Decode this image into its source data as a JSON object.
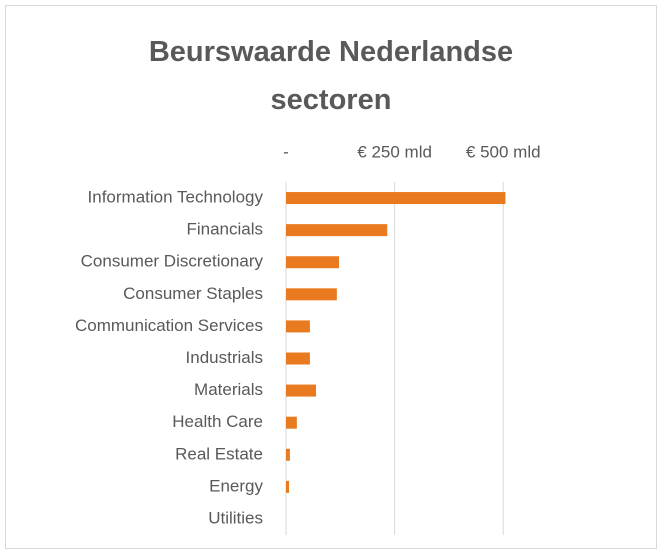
{
  "chart_data": {
    "type": "bar",
    "orientation": "horizontal",
    "title": "Beurswaarde Nederlandse sectoren",
    "categories": [
      "Information Technology",
      "Financials",
      "Consumer Discretionary",
      "Consumer Staples",
      "Communication Services",
      "Industrials",
      "Materials",
      "Health Care",
      "Real Estate",
      "Energy",
      "Utilities"
    ],
    "values": [
      505,
      233,
      122,
      117,
      55,
      55,
      69,
      25,
      9,
      7,
      0
    ],
    "color": "#e97a1f",
    "xlim": [
      0,
      550
    ],
    "xticks": [
      {
        "value": 0,
        "label": "-"
      },
      {
        "value": 250,
        "label": "€ 250 mld"
      },
      {
        "value": 500,
        "label": "€ 500 mld"
      }
    ],
    "grid": true
  }
}
